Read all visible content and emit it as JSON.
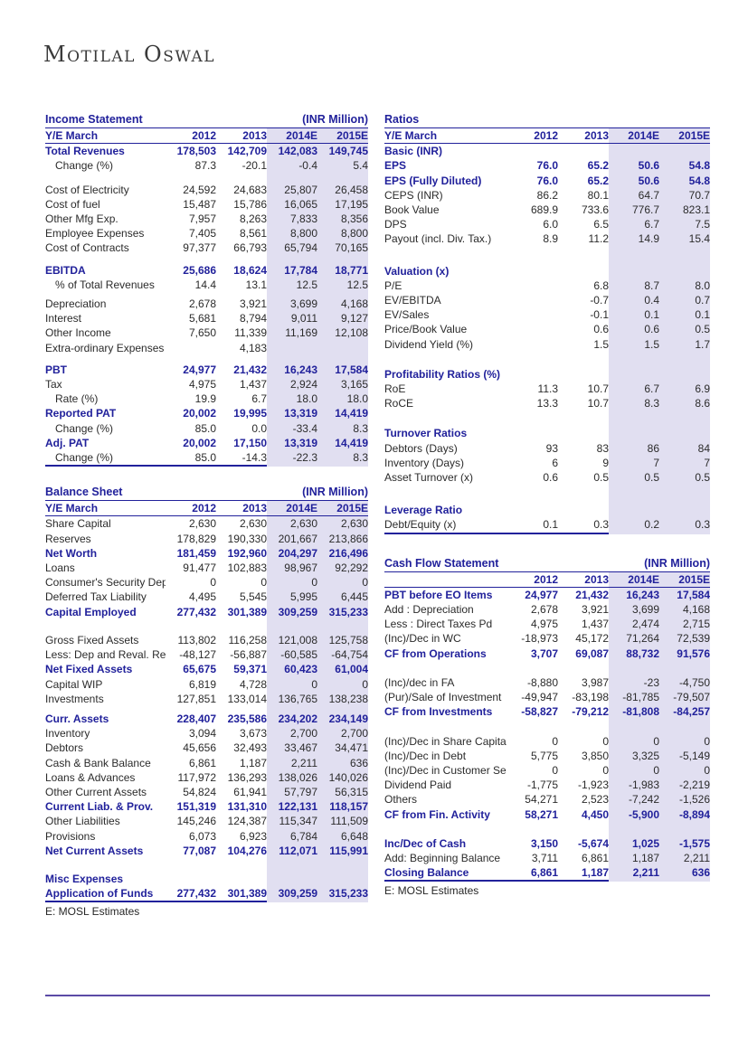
{
  "brand": {
    "logo": "Motilal Oswal"
  },
  "colors": {
    "accent_navy": "#21219B",
    "estimate_shade_lavender": "#E1DFF1",
    "body_text": "#2B2B2B",
    "page_rule_purple": "#5B4AA6"
  },
  "tables": {
    "income_statement": {
      "title": "Income Statement",
      "unit": "(INR Million)",
      "col_header": [
        "Y/E March",
        "2012",
        "2013",
        "2014E",
        "2015E"
      ],
      "rows": [
        {
          "label": "Total Revenues",
          "values": [
            "178,503",
            "142,709",
            "142,083",
            "149,745"
          ],
          "style": "bold"
        },
        {
          "label": "Change (%)",
          "values": [
            "87.3",
            "-20.1",
            "-0.4",
            "5.4"
          ],
          "style": "indent"
        },
        {
          "gap": 10
        },
        {
          "label": "Cost of Electricity",
          "values": [
            "24,592",
            "24,683",
            "25,807",
            "26,458"
          ]
        },
        {
          "label": "Cost of fuel",
          "values": [
            "15,487",
            "15,786",
            "16,065",
            "17,195"
          ]
        },
        {
          "label": "Other Mfg Exp.",
          "values": [
            "7,957",
            "8,263",
            "7,833",
            "8,356"
          ]
        },
        {
          "label": "Employee Expenses",
          "values": [
            "7,405",
            "8,561",
            "8,800",
            "8,800"
          ]
        },
        {
          "label": "Cost of Contracts",
          "values": [
            "97,377",
            "66,793",
            "65,794",
            "70,165"
          ]
        },
        {
          "gap": 8
        },
        {
          "label": "EBITDA",
          "values": [
            "25,686",
            "18,624",
            "17,784",
            "18,771"
          ],
          "style": "bold"
        },
        {
          "label": "% of Total Revenues",
          "values": [
            "14.4",
            "13.1",
            "12.5",
            "12.5"
          ],
          "style": "indent"
        },
        {
          "gap": 5
        },
        {
          "label": "Depreciation",
          "values": [
            "2,678",
            "3,921",
            "3,699",
            "4,168"
          ]
        },
        {
          "label": "Interest",
          "values": [
            "5,681",
            "8,794",
            "9,011",
            "9,127"
          ]
        },
        {
          "label": "Other Income",
          "values": [
            "7,650",
            "11,339",
            "11,169",
            "12,108"
          ]
        },
        {
          "label": "Extra-ordinary Expenses",
          "values": [
            "",
            "4,183",
            "",
            ""
          ]
        },
        {
          "gap": 8
        },
        {
          "label": "PBT",
          "values": [
            "24,977",
            "21,432",
            "16,243",
            "17,584"
          ],
          "style": "bold"
        },
        {
          "label": "Tax",
          "values": [
            "4,975",
            "1,437",
            "2,924",
            "3,165"
          ]
        },
        {
          "label": "Rate (%)",
          "values": [
            "19.9",
            "6.7",
            "18.0",
            "18.0"
          ],
          "style": "indent"
        },
        {
          "label": "Reported PAT",
          "values": [
            "20,002",
            "19,995",
            "13,319",
            "14,419"
          ],
          "style": "bold"
        },
        {
          "label": "Change (%)",
          "values": [
            "85.0",
            "0.0",
            "-33.4",
            "8.3"
          ],
          "style": "indent"
        },
        {
          "label": "Adj. PAT",
          "values": [
            "20,002",
            "17,150",
            "13,319",
            "14,419"
          ],
          "style": "bold"
        },
        {
          "label": "Change (%)",
          "values": [
            "85.0",
            "-14.3",
            "-22.3",
            "8.3"
          ],
          "style": "indent"
        }
      ]
    },
    "balance_sheet": {
      "title": "Balance Sheet",
      "unit": "(INR Million)",
      "col_header": [
        "Y/E March",
        "2012",
        "2013",
        "2014E",
        "2015E"
      ],
      "rows": [
        {
          "label": "Share Capital",
          "values": [
            "2,630",
            "2,630",
            "2,630",
            "2,630"
          ]
        },
        {
          "label": "Reserves",
          "values": [
            "178,829",
            "190,330",
            "201,667",
            "213,866"
          ]
        },
        {
          "label": "Net Worth",
          "values": [
            "181,459",
            "192,960",
            "204,297",
            "216,496"
          ],
          "style": "bold"
        },
        {
          "label": "Loans",
          "values": [
            "91,477",
            "102,883",
            "98,967",
            "92,292"
          ]
        },
        {
          "label": "Consumer's Security Dep",
          "values": [
            "0",
            "0",
            "0",
            "0"
          ]
        },
        {
          "label": "Deferred Tax Liability",
          "values": [
            "4,495",
            "5,545",
            "5,995",
            "6,445"
          ]
        },
        {
          "label": "Capital Employed",
          "values": [
            "277,432",
            "301,389",
            "309,259",
            "315,233"
          ],
          "style": "bold"
        },
        {
          "gap": 15
        },
        {
          "label": "Gross Fixed Assets",
          "values": [
            "113,802",
            "116,258",
            "121,008",
            "125,758"
          ]
        },
        {
          "label": "Less: Dep and Reval. Res",
          "values": [
            "-48,127",
            "-56,887",
            "-60,585",
            "-64,754"
          ]
        },
        {
          "label": "Net Fixed Assets",
          "values": [
            "65,675",
            "59,371",
            "60,423",
            "61,004"
          ],
          "style": "bold"
        },
        {
          "label": "Capital WIP",
          "values": [
            "6,819",
            "4,728",
            "0",
            "0"
          ]
        },
        {
          "label": "Investments",
          "values": [
            "127,851",
            "133,014",
            "136,765",
            "138,238"
          ]
        },
        {
          "gap": 6
        },
        {
          "label": "Curr. Assets",
          "values": [
            "228,407",
            "235,586",
            "234,202",
            "234,149"
          ],
          "style": "bold"
        },
        {
          "label": "Inventory",
          "values": [
            "3,094",
            "3,673",
            "2,700",
            "2,700"
          ]
        },
        {
          "label": "Debtors",
          "values": [
            "45,656",
            "32,493",
            "33,467",
            "34,471"
          ]
        },
        {
          "label": "Cash & Bank Balance",
          "values": [
            "6,861",
            "1,187",
            "2,211",
            "636"
          ]
        },
        {
          "label": "Loans & Advances",
          "values": [
            "117,972",
            "136,293",
            "138,026",
            "140,026"
          ]
        },
        {
          "label": "Other Current Assets",
          "values": [
            "54,824",
            "61,941",
            "57,797",
            "56,315"
          ]
        },
        {
          "label": "Current Liab. & Prov.",
          "values": [
            "151,319",
            "131,310",
            "122,131",
            "118,157"
          ],
          "style": "bold"
        },
        {
          "label": "Other Liabilities",
          "values": [
            "145,246",
            "124,387",
            "115,347",
            "111,509"
          ]
        },
        {
          "label": "Provisions",
          "values": [
            "6,073",
            "6,923",
            "6,784",
            "6,648"
          ]
        },
        {
          "label": "Net Current Assets",
          "values": [
            "77,087",
            "104,276",
            "112,071",
            "115,991"
          ],
          "style": "bold"
        },
        {
          "gap": 15
        },
        {
          "label": "Misc Expenses",
          "values": [
            "",
            "",
            "",
            ""
          ],
          "style": "section"
        },
        {
          "label": "Application of Funds",
          "values": [
            "277,432",
            "301,389",
            "309,259",
            "315,233"
          ],
          "style": "bold"
        }
      ],
      "footnote": "E: MOSL Estimates"
    },
    "ratios": {
      "title": "Ratios",
      "unit": "",
      "col_header": [
        "Y/E March",
        "2012",
        "2013",
        "2014E",
        "2015E"
      ],
      "rows": [
        {
          "label": "Basic (INR)",
          "values": [
            "",
            "",
            "",
            ""
          ],
          "style": "section"
        },
        {
          "label": "EPS",
          "values": [
            "76.0",
            "65.2",
            "50.6",
            "54.8"
          ],
          "style": "bold"
        },
        {
          "label": "EPS (Fully Diluted)",
          "values": [
            "76.0",
            "65.2",
            "50.6",
            "54.8"
          ],
          "style": "bold"
        },
        {
          "label": "CEPS (INR)",
          "values": [
            "86.2",
            "80.1",
            "64.7",
            "70.7"
          ]
        },
        {
          "label": "Book Value",
          "values": [
            "689.9",
            "733.6",
            "776.7",
            "823.1"
          ]
        },
        {
          "label": "DPS",
          "values": [
            "6.0",
            "6.5",
            "6.7",
            "7.5"
          ]
        },
        {
          "label": "Payout (incl. Div. Tax.)",
          "values": [
            "8.9",
            "11.2",
            "14.9",
            "15.4"
          ]
        },
        {
          "gap": 19
        },
        {
          "label": "Valuation (x)",
          "values": [
            "",
            "",
            "",
            ""
          ],
          "style": "section"
        },
        {
          "label": "P/E",
          "values": [
            "",
            "6.8",
            "8.7",
            "8.0"
          ]
        },
        {
          "label": "EV/EBITDA",
          "values": [
            "",
            "-0.7",
            "0.4",
            "0.7"
          ]
        },
        {
          "label": "EV/Sales",
          "values": [
            "",
            "-0.1",
            "0.1",
            "0.1"
          ]
        },
        {
          "label": "Price/Book Value",
          "values": [
            "",
            "0.6",
            "0.6",
            "0.5"
          ]
        },
        {
          "label": "Dividend Yield (%)",
          "values": [
            "",
            "1.5",
            "1.5",
            "1.7"
          ]
        },
        {
          "gap": 17
        },
        {
          "label": "Profitability Ratios (%)",
          "values": [
            "",
            "",
            "",
            ""
          ],
          "style": "section"
        },
        {
          "label": "RoE",
          "values": [
            "11.3",
            "10.7",
            "6.7",
            "6.9"
          ]
        },
        {
          "label": "RoCE",
          "values": [
            "13.3",
            "10.7",
            "8.3",
            "8.6"
          ]
        },
        {
          "gap": 17
        },
        {
          "label": "Turnover Ratios",
          "values": [
            "",
            "",
            "",
            ""
          ],
          "style": "section"
        },
        {
          "label": "Debtors (Days)",
          "values": [
            "93",
            "83",
            "86",
            "84"
          ]
        },
        {
          "label": "Inventory (Days)",
          "values": [
            "6",
            "9",
            "7",
            "7"
          ]
        },
        {
          "label": "Asset Turnover (x)",
          "values": [
            "0.6",
            "0.5",
            "0.5",
            "0.5"
          ]
        },
        {
          "gap": 20
        },
        {
          "label": "Leverage Ratio",
          "values": [
            "",
            "",
            "",
            ""
          ],
          "style": "section"
        },
        {
          "label": "Debt/Equity (x)",
          "values": [
            "0.1",
            "0.3",
            "0.2",
            "0.3"
          ]
        }
      ]
    },
    "cash_flow": {
      "title": "Cash Flow Statement",
      "unit": "(INR Million)",
      "col_header": [
        "",
        "2012",
        "2013",
        "2014E",
        "2015E"
      ],
      "rows": [
        {
          "label": "PBT before EO Items",
          "values": [
            "24,977",
            "21,432",
            "16,243",
            "17,584"
          ],
          "style": "bold"
        },
        {
          "label": "Add : Depreciation",
          "values": [
            "2,678",
            "3,921",
            "3,699",
            "4,168"
          ]
        },
        {
          "label": "Less : Direct Taxes Pd",
          "values": [
            "4,975",
            "1,437",
            "2,474",
            "2,715"
          ]
        },
        {
          "label": "(Inc)/Dec in WC",
          "values": [
            "-18,973",
            "45,172",
            "71,264",
            "72,539"
          ]
        },
        {
          "label": "CF from Operations",
          "values": [
            "3,707",
            "69,087",
            "88,732",
            "91,576"
          ],
          "style": "bold"
        },
        {
          "gap": 16
        },
        {
          "label": "(Inc)/dec in FA",
          "values": [
            "-8,880",
            "3,987",
            "-23",
            "-4,750"
          ]
        },
        {
          "label": "(Pur)/Sale of Investment",
          "values": [
            "-49,947",
            "-83,198",
            "-81,785",
            "-79,507"
          ]
        },
        {
          "label": "CF from Investments",
          "values": [
            "-58,827",
            "-79,212",
            "-81,808",
            "-84,257"
          ],
          "style": "bold"
        },
        {
          "gap": 16
        },
        {
          "label": "(Inc)/Dec in Share Capita",
          "values": [
            "0",
            "0",
            "0",
            "0"
          ]
        },
        {
          "label": "(Inc)/Dec in Debt",
          "values": [
            "5,775",
            "3,850",
            "3,325",
            "-5,149"
          ]
        },
        {
          "label": "(Inc)/Dec in Customer Se",
          "values": [
            "0",
            "0",
            "0",
            "0"
          ]
        },
        {
          "label": "Dividend Paid",
          "values": [
            "-1,775",
            "-1,923",
            "-1,983",
            "-2,219"
          ]
        },
        {
          "label": "Others",
          "values": [
            "54,271",
            "2,523",
            "-7,242",
            "-1,526"
          ]
        },
        {
          "label": "CF from Fin. Activity",
          "values": [
            "58,271",
            "4,450",
            "-5,900",
            "-8,894"
          ],
          "style": "bold"
        },
        {
          "gap": 16
        },
        {
          "label": "Inc/Dec of Cash",
          "values": [
            "3,150",
            "-5,674",
            "1,025",
            "-1,575"
          ],
          "style": "bold"
        },
        {
          "label": "Add: Beginning Balance",
          "values": [
            "3,711",
            "6,861",
            "1,187",
            "2,211"
          ]
        },
        {
          "label": "Closing Balance",
          "values": [
            "6,861",
            "1,187",
            "2,211",
            "636"
          ],
          "style": "bold"
        }
      ],
      "footnote": "E: MOSL Estimates"
    }
  }
}
